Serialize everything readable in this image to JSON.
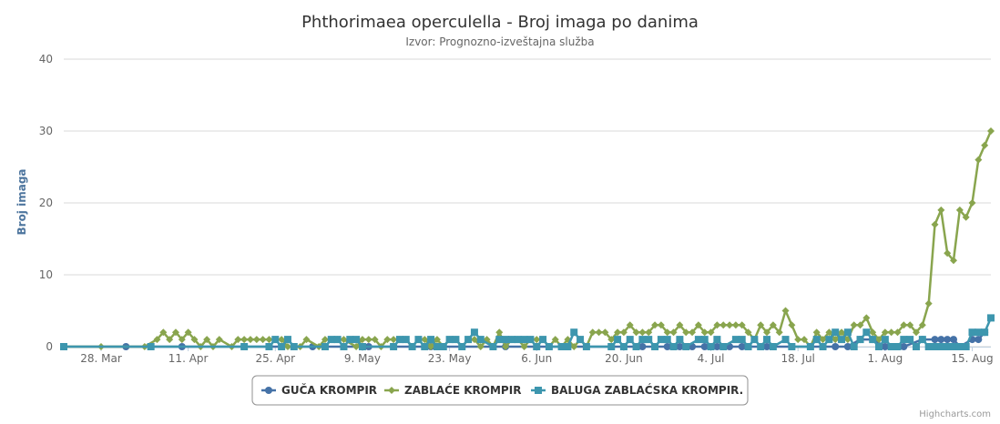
{
  "chart_data": {
    "type": "line",
    "title": "Phthorimaea operculella - Broj imaga po danima",
    "subtitle": "Izvor: Prognozno-izveštajna služba",
    "ylabel": "Broj imaga",
    "xlabel": "",
    "ylim": [
      0,
      40
    ],
    "y_ticks": [
      "0",
      "10",
      "20",
      "30",
      "40"
    ],
    "x_ticks": [
      "28. Mar",
      "11. Apr",
      "25. Apr",
      "9. May",
      "23. May",
      "6. Jun",
      "20. Jun",
      "4. Jul",
      "18. Jul",
      "1. Aug",
      "15. Aug"
    ],
    "grid": true,
    "legend_position": "bottom",
    "credits": "Highcharts.com",
    "series": [
      {
        "name": "GUČA KROMPIR",
        "color": "#4572a7",
        "marker": "circle",
        "points": [
          [
            "22.03",
            0
          ],
          [
            "01.04",
            0
          ],
          [
            "10.04",
            0
          ],
          [
            "20.04",
            0
          ],
          [
            "01.05",
            0
          ],
          [
            "10.05",
            0
          ],
          [
            "20.05",
            0
          ],
          [
            "01.06",
            0
          ],
          [
            "10.06",
            0
          ],
          [
            "20.06",
            0
          ],
          [
            "23.06",
            0
          ],
          [
            "25.06",
            0
          ],
          [
            "27.06",
            0
          ],
          [
            "29.06",
            0
          ],
          [
            "01.07",
            0
          ],
          [
            "03.07",
            0
          ],
          [
            "05.07",
            0
          ],
          [
            "07.07",
            0
          ],
          [
            "09.07",
            0
          ],
          [
            "13.07",
            0
          ],
          [
            "20.07",
            0
          ],
          [
            "22.07",
            0
          ],
          [
            "24.07",
            0
          ],
          [
            "26.07",
            0
          ],
          [
            "28.07",
            1
          ],
          [
            "30.07",
            1
          ],
          [
            "01.08",
            0
          ],
          [
            "04.08",
            0
          ],
          [
            "07.08",
            1
          ],
          [
            "09.08",
            1
          ],
          [
            "10.08",
            1
          ],
          [
            "11.08",
            1
          ],
          [
            "12.08",
            1
          ],
          [
            "13.08",
            0
          ],
          [
            "15.08",
            1
          ],
          [
            "16.08",
            1
          ],
          [
            "17.08",
            2
          ]
        ]
      },
      {
        "name": "ZABLAĆE KROMPIR",
        "color": "#89a54e",
        "marker": "diamond",
        "points": [
          [
            "22.03",
            0
          ],
          [
            "28.03",
            0
          ],
          [
            "04.04",
            0
          ],
          [
            "06.04",
            1
          ],
          [
            "07.04",
            2
          ],
          [
            "08.04",
            1
          ],
          [
            "09.04",
            2
          ],
          [
            "10.04",
            1
          ],
          [
            "11.04",
            2
          ],
          [
            "12.04",
            1
          ],
          [
            "13.04",
            0
          ],
          [
            "14.04",
            1
          ],
          [
            "15.04",
            0
          ],
          [
            "16.04",
            1
          ],
          [
            "18.04",
            0
          ],
          [
            "19.04",
            1
          ],
          [
            "20.04",
            1
          ],
          [
            "21.04",
            1
          ],
          [
            "22.04",
            1
          ],
          [
            "23.04",
            1
          ],
          [
            "24.04",
            1
          ],
          [
            "25.04",
            1
          ],
          [
            "26.04",
            1
          ],
          [
            "27.04",
            0
          ],
          [
            "29.04",
            0
          ],
          [
            "30.04",
            1
          ],
          [
            "02.05",
            0
          ],
          [
            "03.05",
            1
          ],
          [
            "05.05",
            1
          ],
          [
            "06.05",
            1
          ],
          [
            "08.05",
            0
          ],
          [
            "09.05",
            1
          ],
          [
            "10.05",
            1
          ],
          [
            "11.05",
            1
          ],
          [
            "12.05",
            0
          ],
          [
            "13.05",
            1
          ],
          [
            "14.05",
            1
          ],
          [
            "15.05",
            1
          ],
          [
            "16.05",
            1
          ],
          [
            "17.05",
            0
          ],
          [
            "18.05",
            1
          ],
          [
            "19.05",
            1
          ],
          [
            "20.05",
            0
          ],
          [
            "21.05",
            1
          ],
          [
            "22.05",
            0
          ],
          [
            "23.05",
            1
          ],
          [
            "24.05",
            1
          ],
          [
            "25.05",
            0
          ],
          [
            "26.05",
            1
          ],
          [
            "27.05",
            1
          ],
          [
            "28.05",
            0
          ],
          [
            "29.05",
            1
          ],
          [
            "30.05",
            0
          ],
          [
            "31.05",
            2
          ],
          [
            "01.06",
            0
          ],
          [
            "02.06",
            1
          ],
          [
            "03.06",
            1
          ],
          [
            "04.06",
            0
          ],
          [
            "05.06",
            1
          ],
          [
            "06.06",
            1
          ],
          [
            "07.06",
            1
          ],
          [
            "08.06",
            0
          ],
          [
            "09.06",
            1
          ],
          [
            "10.06",
            0
          ],
          [
            "11.06",
            1
          ],
          [
            "12.06",
            0
          ],
          [
            "13.06",
            1
          ],
          [
            "14.06",
            0
          ],
          [
            "15.06",
            2
          ],
          [
            "16.06",
            2
          ],
          [
            "17.06",
            2
          ],
          [
            "18.06",
            1
          ],
          [
            "19.06",
            2
          ],
          [
            "20.06",
            2
          ],
          [
            "21.06",
            3
          ],
          [
            "22.06",
            2
          ],
          [
            "23.06",
            2
          ],
          [
            "24.06",
            2
          ],
          [
            "25.06",
            3
          ],
          [
            "26.06",
            3
          ],
          [
            "27.06",
            2
          ],
          [
            "28.06",
            2
          ],
          [
            "29.06",
            3
          ],
          [
            "30.06",
            2
          ],
          [
            "01.07",
            2
          ],
          [
            "02.07",
            3
          ],
          [
            "03.07",
            2
          ],
          [
            "04.07",
            2
          ],
          [
            "05.07",
            3
          ],
          [
            "06.07",
            3
          ],
          [
            "07.07",
            3
          ],
          [
            "08.07",
            3
          ],
          [
            "09.07",
            3
          ],
          [
            "10.07",
            2
          ],
          [
            "11.07",
            1
          ],
          [
            "12.07",
            3
          ],
          [
            "13.07",
            2
          ],
          [
            "14.07",
            3
          ],
          [
            "15.07",
            2
          ],
          [
            "16.07",
            5
          ],
          [
            "17.07",
            3
          ],
          [
            "18.07",
            1
          ],
          [
            "19.07",
            1
          ],
          [
            "20.07",
            0
          ],
          [
            "21.07",
            2
          ],
          [
            "22.07",
            1
          ],
          [
            "23.07",
            2
          ],
          [
            "24.07",
            1
          ],
          [
            "25.07",
            2
          ],
          [
            "26.07",
            1
          ],
          [
            "27.07",
            3
          ],
          [
            "28.07",
            3
          ],
          [
            "29.07",
            4
          ],
          [
            "30.07",
            2
          ],
          [
            "31.07",
            1
          ],
          [
            "01.08",
            2
          ],
          [
            "02.08",
            2
          ],
          [
            "03.08",
            2
          ],
          [
            "04.08",
            3
          ],
          [
            "05.08",
            3
          ],
          [
            "06.08",
            2
          ],
          [
            "07.08",
            3
          ],
          [
            "08.08",
            6
          ],
          [
            "09.08",
            17
          ],
          [
            "10.08",
            19
          ],
          [
            "11.08",
            13
          ],
          [
            "12.08",
            12
          ],
          [
            "13.08",
            19
          ],
          [
            "14.08",
            18
          ],
          [
            "15.08",
            20
          ],
          [
            "16.08",
            26
          ],
          [
            "17.08",
            28
          ],
          [
            "18.08",
            30
          ]
        ]
      },
      {
        "name": "BALUGA ZABLAĆSKA KROMPIR.",
        "color": "#3d96ae",
        "marker": "square",
        "points": [
          [
            "22.03",
            0
          ],
          [
            "05.04",
            0
          ],
          [
            "20.04",
            0
          ],
          [
            "24.04",
            0
          ],
          [
            "25.04",
            1
          ],
          [
            "26.04",
            0
          ],
          [
            "27.04",
            1
          ],
          [
            "28.04",
            0
          ],
          [
            "03.05",
            0
          ],
          [
            "04.05",
            1
          ],
          [
            "05.05",
            1
          ],
          [
            "06.05",
            0
          ],
          [
            "07.05",
            1
          ],
          [
            "08.05",
            1
          ],
          [
            "09.05",
            0
          ],
          [
            "14.05",
            0
          ],
          [
            "15.05",
            1
          ],
          [
            "16.05",
            1
          ],
          [
            "17.05",
            0
          ],
          [
            "18.05",
            1
          ],
          [
            "19.05",
            0
          ],
          [
            "20.05",
            1
          ],
          [
            "21.05",
            0
          ],
          [
            "22.05",
            0
          ],
          [
            "23.05",
            1
          ],
          [
            "24.05",
            1
          ],
          [
            "25.05",
            0
          ],
          [
            "26.05",
            1
          ],
          [
            "27.05",
            2
          ],
          [
            "28.05",
            1
          ],
          [
            "30.05",
            0
          ],
          [
            "31.05",
            1
          ],
          [
            "01.06",
            1
          ],
          [
            "02.06",
            1
          ],
          [
            "03.06",
            1
          ],
          [
            "04.06",
            1
          ],
          [
            "05.06",
            1
          ],
          [
            "06.06",
            0
          ],
          [
            "07.06",
            1
          ],
          [
            "08.06",
            0
          ],
          [
            "10.06",
            0
          ],
          [
            "11.06",
            0
          ],
          [
            "12.06",
            2
          ],
          [
            "13.06",
            1
          ],
          [
            "14.06",
            0
          ],
          [
            "18.06",
            0
          ],
          [
            "19.06",
            1
          ],
          [
            "20.06",
            0
          ],
          [
            "21.06",
            1
          ],
          [
            "22.06",
            0
          ],
          [
            "23.06",
            1
          ],
          [
            "24.06",
            1
          ],
          [
            "25.06",
            0
          ],
          [
            "26.06",
            1
          ],
          [
            "27.06",
            1
          ],
          [
            "28.06",
            0
          ],
          [
            "29.06",
            1
          ],
          [
            "30.06",
            0
          ],
          [
            "02.07",
            1
          ],
          [
            "03.07",
            1
          ],
          [
            "04.07",
            0
          ],
          [
            "05.07",
            1
          ],
          [
            "06.07",
            0
          ],
          [
            "08.07",
            1
          ],
          [
            "09.07",
            1
          ],
          [
            "10.07",
            0
          ],
          [
            "11.07",
            1
          ],
          [
            "12.07",
            0
          ],
          [
            "13.07",
            1
          ],
          [
            "14.07",
            0
          ],
          [
            "16.07",
            1
          ],
          [
            "17.07",
            0
          ],
          [
            "20.07",
            0
          ],
          [
            "21.07",
            1
          ],
          [
            "22.07",
            0
          ],
          [
            "23.07",
            1
          ],
          [
            "24.07",
            2
          ],
          [
            "25.07",
            1
          ],
          [
            "26.07",
            2
          ],
          [
            "27.07",
            0
          ],
          [
            "28.07",
            1
          ],
          [
            "29.07",
            2
          ],
          [
            "30.07",
            1
          ],
          [
            "31.07",
            0
          ],
          [
            "01.08",
            1
          ],
          [
            "02.08",
            0
          ],
          [
            "03.08",
            0
          ],
          [
            "04.08",
            1
          ],
          [
            "05.08",
            1
          ],
          [
            "06.08",
            0
          ],
          [
            "07.08",
            1
          ],
          [
            "08.08",
            0
          ],
          [
            "09.08",
            0
          ],
          [
            "10.08",
            0
          ],
          [
            "11.08",
            0
          ],
          [
            "12.08",
            0
          ],
          [
            "13.08",
            0
          ],
          [
            "14.08",
            0
          ],
          [
            "15.08",
            2
          ],
          [
            "16.08",
            2
          ],
          [
            "17.08",
            2
          ],
          [
            "18.08",
            4
          ]
        ]
      }
    ]
  }
}
